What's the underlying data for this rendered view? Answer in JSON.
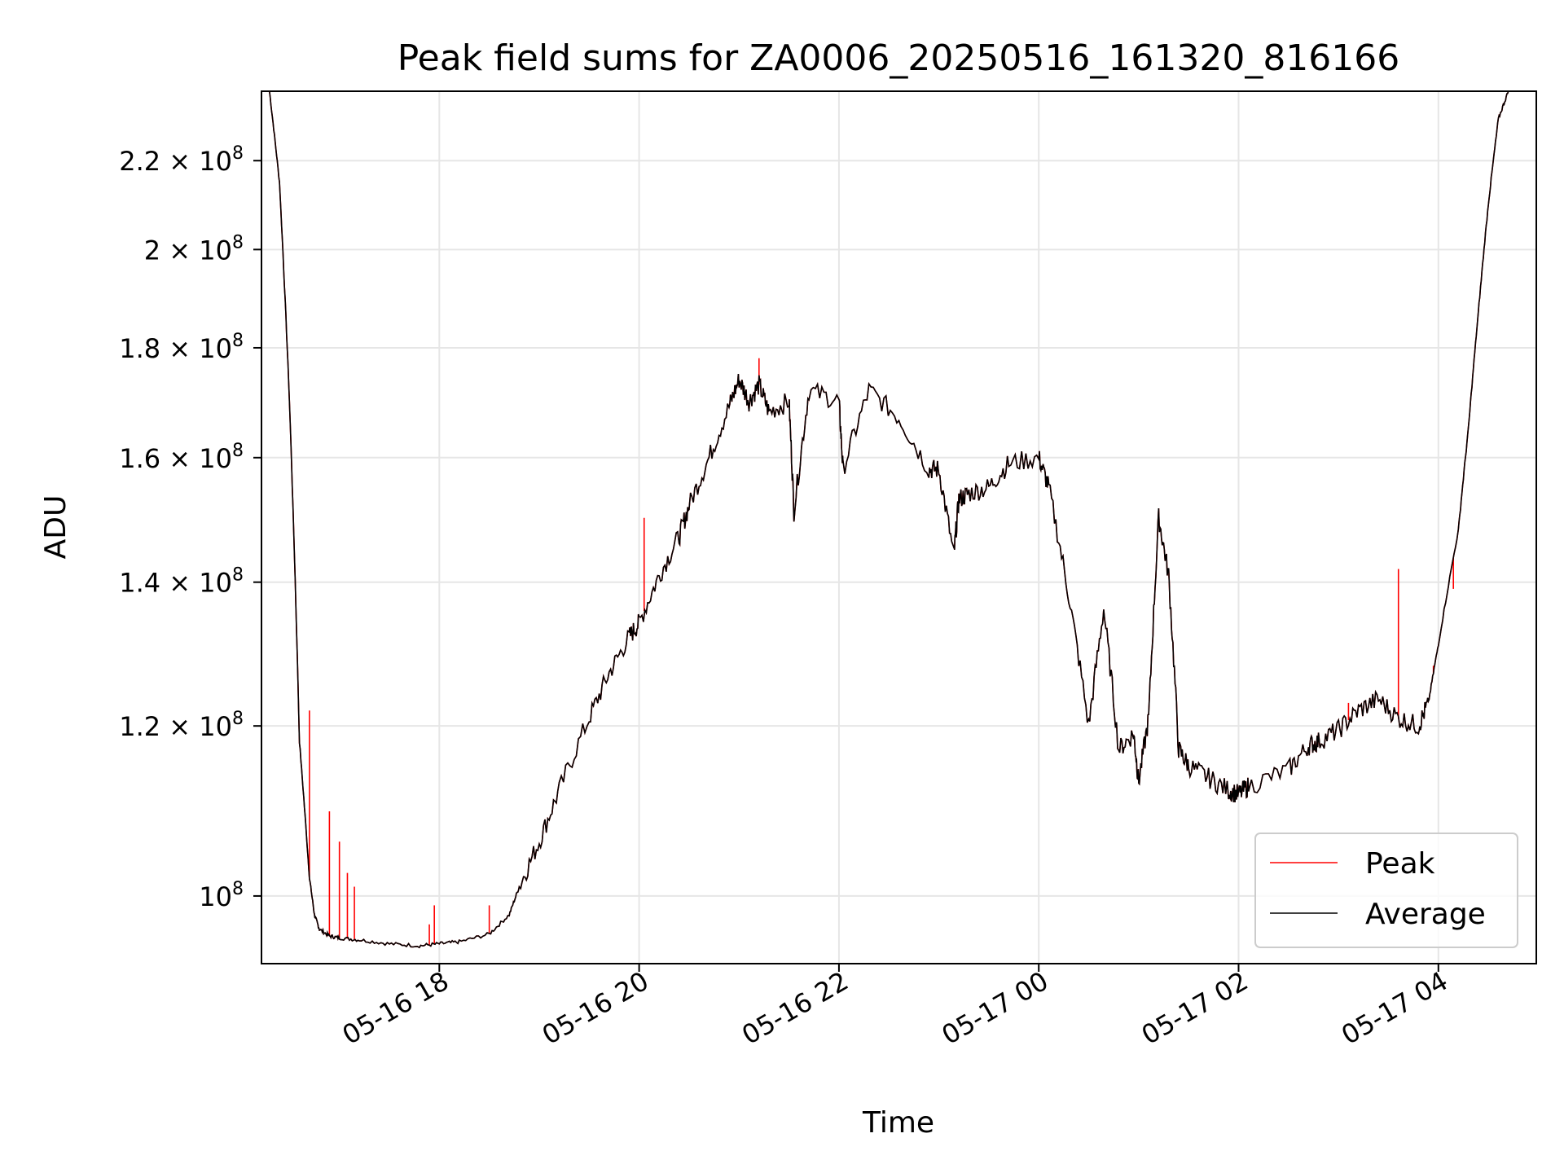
{
  "chart_data": {
    "type": "line",
    "title": "Peak field sums for ZA0006_20250516_161320_816166",
    "xlabel": "Time",
    "ylabel": "ADU",
    "yscale": "log",
    "ylim": [
      93000000,
      237000000
    ],
    "x_tick_labels": [
      "05-16 18",
      "05-16 20",
      "05-16 22",
      "05-17 00",
      "05-17 02",
      "05-17 04"
    ],
    "y_tick_labels": [
      {
        "value": 100000000,
        "mantissa": "",
        "exponent": "8"
      },
      {
        "value": 120000000,
        "mantissa": "1.2",
        "exponent": "8"
      },
      {
        "value": 140000000,
        "mantissa": "1.4",
        "exponent": "8"
      },
      {
        "value": 160000000,
        "mantissa": "1.6",
        "exponent": "8"
      },
      {
        "value": 180000000,
        "mantissa": "1.8",
        "exponent": "8"
      },
      {
        "value": 200000000,
        "mantissa": "2",
        "exponent": "8"
      },
      {
        "value": 220000000,
        "mantissa": "2.2",
        "exponent": "8"
      }
    ],
    "grid": true,
    "legend_position": "lower right",
    "legend": [
      "Peak",
      "Average"
    ],
    "colors": {
      "Peak": "#ff0000",
      "Average": "#000000"
    },
    "x_hours": [
      16.3,
      16.4,
      16.5,
      16.6,
      16.7,
      16.75,
      16.8,
      16.9,
      17.0,
      17.2,
      17.5,
      17.8,
      18.0,
      18.2,
      18.5,
      18.7,
      18.8,
      19.0,
      19.2,
      19.5,
      19.7,
      19.9,
      20.0,
      20.2,
      20.4,
      20.5,
      20.7,
      20.9,
      21.0,
      21.1,
      21.2,
      21.3,
      21.5,
      21.55,
      21.7,
      22.0,
      22.04,
      22.3,
      22.6,
      22.9,
      23.0,
      23.15,
      23.2,
      23.3,
      23.5,
      23.7,
      24.0,
      24.1,
      24.3,
      24.5,
      24.65,
      24.8,
      24.95,
      25.0,
      25.1,
      25.2,
      25.3,
      25.4,
      25.5,
      25.7,
      25.9,
      26.0,
      26.1,
      26.5,
      26.7,
      26.8,
      27.0,
      27.2,
      27.4,
      27.6,
      27.8,
      27.9,
      28.0,
      28.2,
      28.3,
      28.4,
      28.5,
      28.6,
      28.7
    ],
    "series": [
      {
        "name": "Average",
        "values": [
          237000000,
          215000000,
          170000000,
          118000000,
          102000000,
          98000000,
          96500000,
          95800000,
          95600000,
          95400000,
          95000000,
          94800000,
          95000000,
          95200000,
          96000000,
          98000000,
          101000000,
          106000000,
          112000000,
          121000000,
          127000000,
          132000000,
          134000000,
          141000000,
          147000000,
          152000000,
          160000000,
          169000000,
          174000000,
          170000000,
          173000000,
          168000000,
          170000000,
          151000000,
          172000000,
          170000000,
          158000000,
          172000000,
          167000000,
          158000000,
          158000000,
          144000000,
          153000000,
          154000000,
          155000000,
          159000000,
          160000000,
          155000000,
          138000000,
          120000000,
          136000000,
          117000000,
          119000000,
          113000000,
          121000000,
          150000000,
          141000000,
          117000000,
          115000000,
          113500000,
          112000000,
          111500000,
          112500000,
          114500000,
          117500000,
          118000000,
          119500000,
          122000000,
          123500000,
          121000000,
          120000000,
          123000000,
          131000000,
          148000000,
          165000000,
          187000000,
          210000000,
          230000000,
          237000000
        ]
      },
      {
        "name": "Peak",
        "spikes": [
          {
            "x": 16.7,
            "y": 122000000
          },
          {
            "x": 16.9,
            "y": 109500000
          },
          {
            "x": 17.0,
            "y": 106000000
          },
          {
            "x": 17.08,
            "y": 102500000
          },
          {
            "x": 17.15,
            "y": 101000000
          },
          {
            "x": 17.9,
            "y": 97000000
          },
          {
            "x": 17.95,
            "y": 99000000
          },
          {
            "x": 18.5,
            "y": 99000000
          },
          {
            "x": 20.05,
            "y": 150000000
          },
          {
            "x": 21.2,
            "y": 178000000
          },
          {
            "x": 27.1,
            "y": 123000000
          },
          {
            "x": 27.6,
            "y": 142000000
          },
          {
            "x": 27.95,
            "y": 128000000
          },
          {
            "x": 28.15,
            "y": 139000000
          }
        ]
      }
    ]
  }
}
